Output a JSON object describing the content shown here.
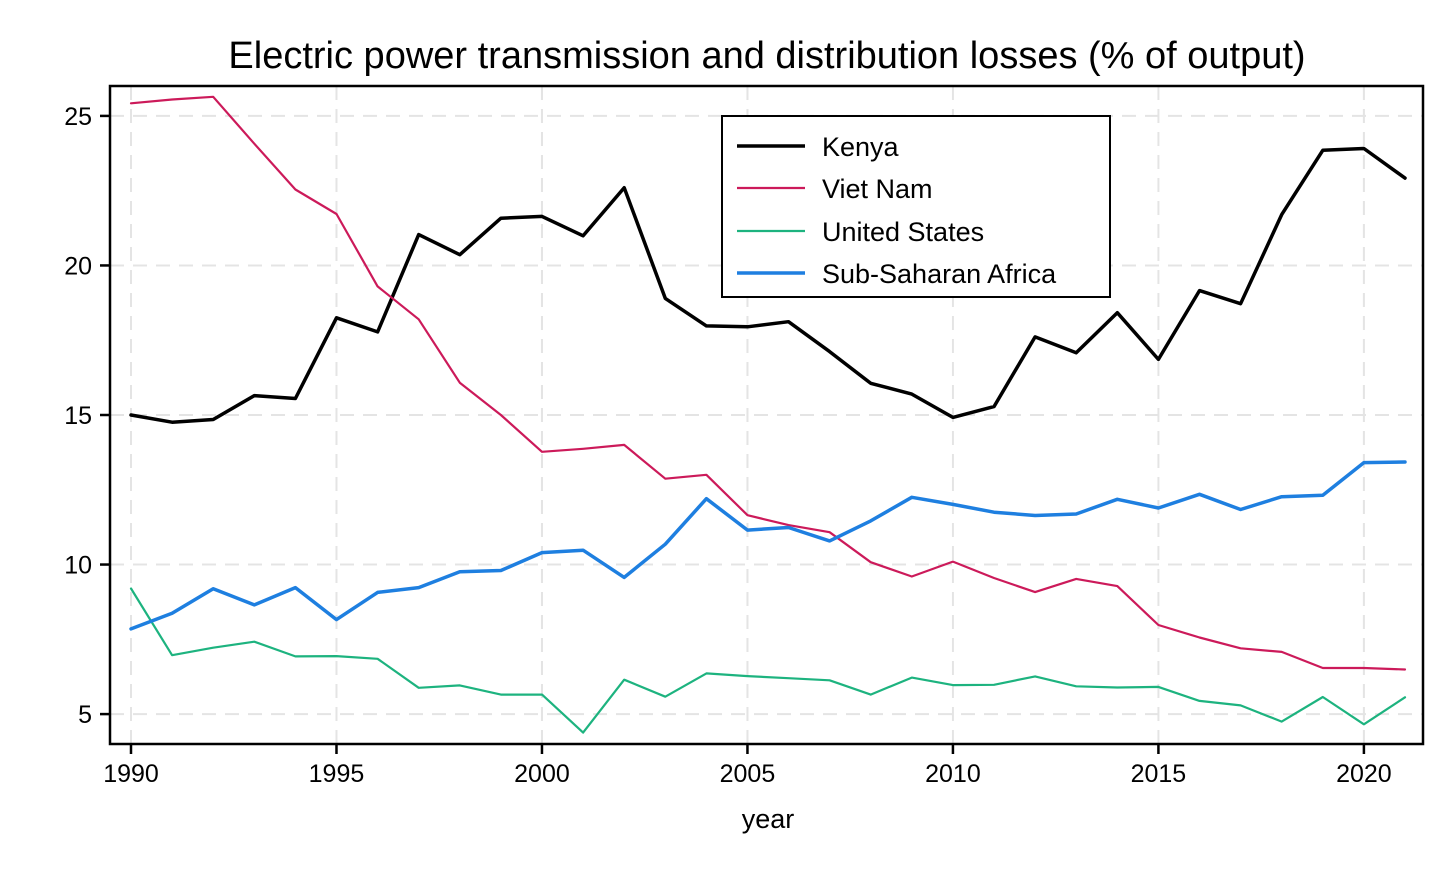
{
  "chart_data": {
    "type": "line",
    "title": "Electric power transmission and distribution losses (% of output)",
    "xlabel": "year",
    "ylabel": "",
    "xlim": [
      1990,
      2021
    ],
    "ylim": [
      4,
      26
    ],
    "x_ticks": [
      1990,
      1995,
      2000,
      2005,
      2010,
      2015,
      2020
    ],
    "y_ticks": [
      5,
      10,
      15,
      20,
      25
    ],
    "grid": true,
    "legend_position": "top-center",
    "x": [
      1990,
      1991,
      1992,
      1993,
      1994,
      1995,
      1996,
      1997,
      1998,
      1999,
      2000,
      2001,
      2002,
      2003,
      2004,
      2005,
      2006,
      2007,
      2008,
      2009,
      2010,
      2011,
      2012,
      2013,
      2014,
      2015,
      2016,
      2017,
      2018,
      2019,
      2020,
      2021
    ],
    "series": [
      {
        "name": "Kenya",
        "color": "#000000",
        "width": 3.5,
        "values": [
          15.0,
          14.76,
          14.85,
          15.65,
          15.55,
          18.25,
          17.78,
          21.03,
          20.36,
          21.58,
          21.64,
          20.99,
          22.6,
          18.9,
          17.98,
          17.95,
          18.12,
          17.12,
          16.06,
          15.7,
          14.92,
          15.28,
          17.61,
          17.08,
          18.42,
          16.86,
          19.16,
          18.72,
          21.7,
          23.85,
          23.91,
          22.92
        ]
      },
      {
        "name": "Viet Nam",
        "color": "#cc1a5a",
        "width": 2.2,
        "values": [
          25.42,
          25.55,
          25.64,
          24.07,
          22.54,
          21.72,
          19.3,
          18.2,
          16.08,
          15.0,
          13.77,
          13.87,
          14.0,
          12.87,
          13.0,
          11.65,
          11.32,
          11.08,
          10.08,
          9.6,
          10.1,
          9.55,
          9.08,
          9.52,
          9.28,
          7.98,
          7.56,
          7.2,
          7.08,
          6.54,
          6.54,
          6.49
        ]
      },
      {
        "name": "United States",
        "color": "#1db37f",
        "width": 2.2,
        "values": [
          9.2,
          6.97,
          7.22,
          7.42,
          6.93,
          6.94,
          6.85,
          5.88,
          5.96,
          5.65,
          5.65,
          4.38,
          6.15,
          5.58,
          6.36,
          6.27,
          6.2,
          6.13,
          5.65,
          6.22,
          5.97,
          5.98,
          6.26,
          5.93,
          5.89,
          5.91,
          5.44,
          5.29,
          4.75,
          5.57,
          4.66,
          5.56
        ]
      },
      {
        "name": "Sub-Saharan Africa",
        "color": "#1e7fe0",
        "width": 3.5,
        "values": [
          7.85,
          8.37,
          9.19,
          8.65,
          9.23,
          8.16,
          9.07,
          9.23,
          9.76,
          9.8,
          10.4,
          10.48,
          9.57,
          10.68,
          12.2,
          11.15,
          11.24,
          10.79,
          11.46,
          12.25,
          12.01,
          11.75,
          11.64,
          11.69,
          12.18,
          11.89,
          12.35,
          11.84,
          12.27,
          12.32,
          13.41,
          13.43
        ]
      }
    ]
  }
}
